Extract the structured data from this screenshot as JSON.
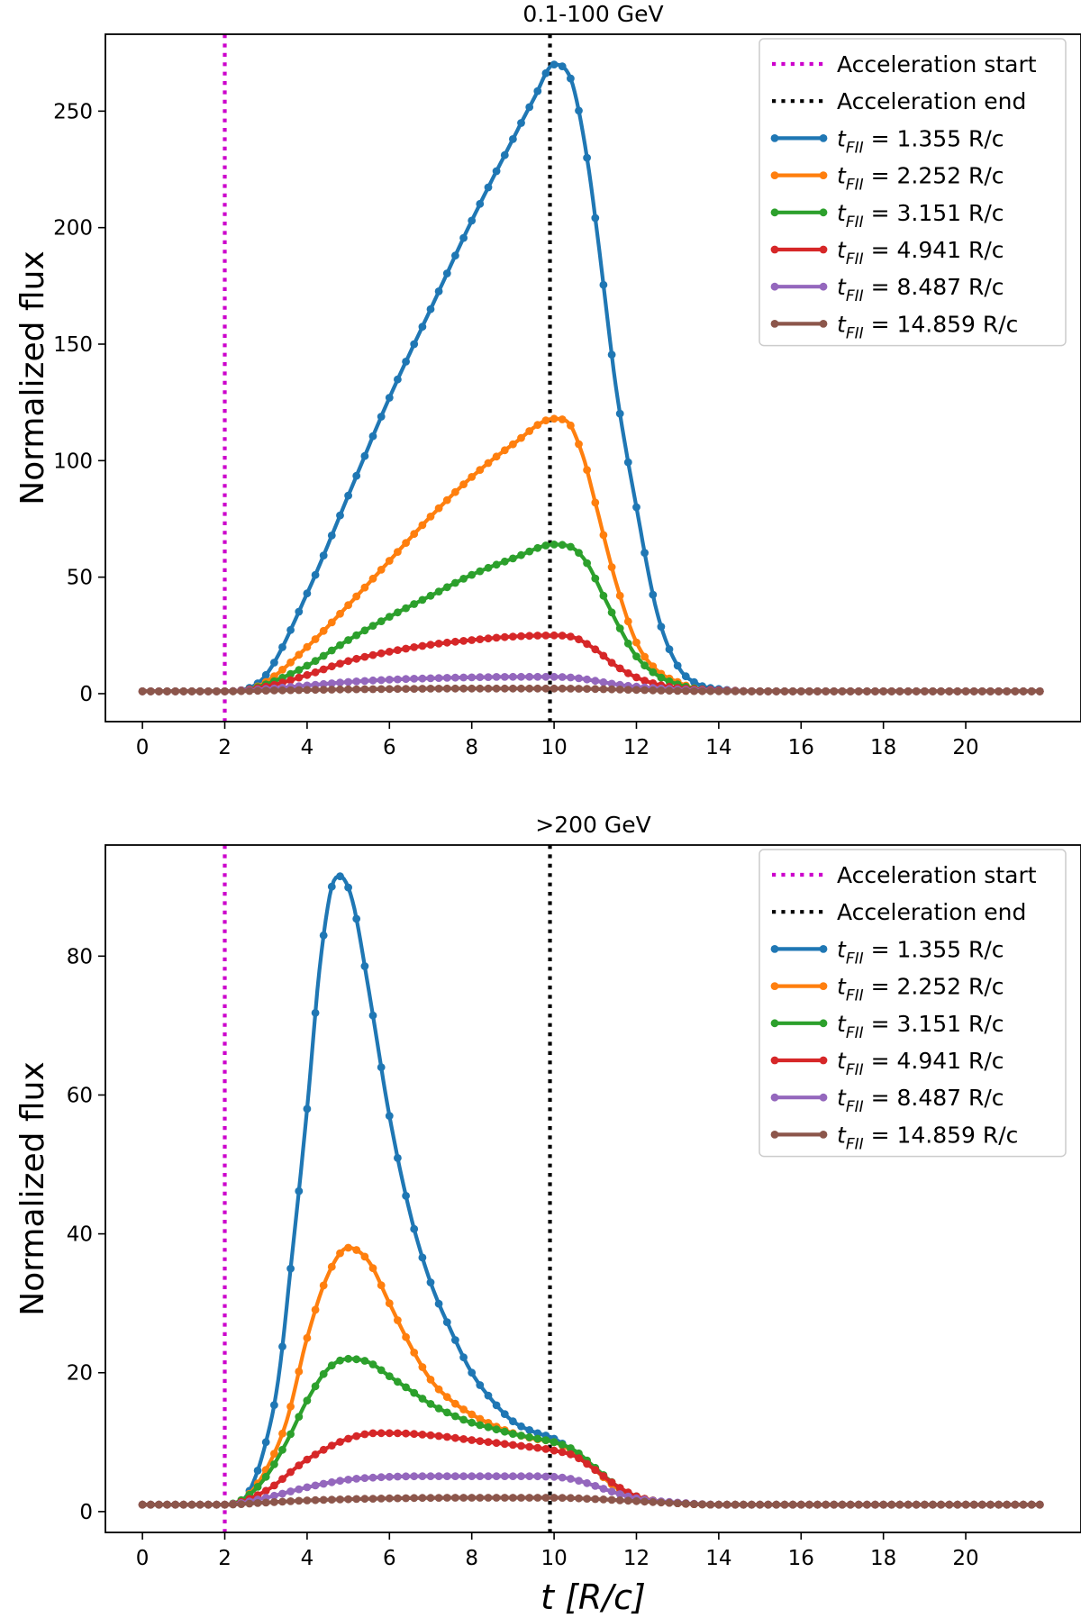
{
  "chart_data": [
    {
      "type": "line",
      "title": "0.1-100 GeV",
      "ylabel": "Normalized flux",
      "xlabel": "",
      "xlim": [
        -0.9,
        22.8
      ],
      "ylim": [
        -12,
        283
      ],
      "xticks": [
        0,
        2,
        4,
        6,
        8,
        10,
        12,
        14,
        16,
        18,
        20
      ],
      "yticks": [
        0,
        50,
        100,
        150,
        200,
        250
      ],
      "legend_position": "top-right",
      "markers": "dots",
      "vlines": [
        {
          "name": "Acceleration start",
          "x": 2.0,
          "color": "#cc00cc",
          "style": "dotted"
        },
        {
          "name": "Acceleration end",
          "x": 9.9,
          "color": "#000000",
          "style": "dotted"
        }
      ],
      "series": [
        {
          "name": "1.355 R/c",
          "color": "#1f77b4",
          "points": [
            [
              0,
              1
            ],
            [
              2,
              1
            ],
            [
              2.4,
              1.5
            ],
            [
              3,
              8
            ],
            [
              4,
              43
            ],
            [
              5,
              85
            ],
            [
              6,
              127
            ],
            [
              7,
              165
            ],
            [
              8,
              203
            ],
            [
              9,
              238
            ],
            [
              9.5,
              255
            ],
            [
              10,
              270
            ],
            [
              10.4,
              264
            ],
            [
              10.8,
              230
            ],
            [
              11.1,
              190
            ],
            [
              11.5,
              132
            ],
            [
              12,
              80
            ],
            [
              12.5,
              35
            ],
            [
              13,
              12
            ],
            [
              13.5,
              4
            ],
            [
              14,
              2
            ],
            [
              15,
              1
            ],
            [
              22,
              1
            ]
          ]
        },
        {
          "name": "2.252 R/c",
          "color": "#ff7f0e",
          "points": [
            [
              0,
              1
            ],
            [
              2,
              1
            ],
            [
              2.5,
              1.5
            ],
            [
              3,
              5
            ],
            [
              4,
              20
            ],
            [
              5,
              38
            ],
            [
              6,
              57
            ],
            [
              7,
              76
            ],
            [
              8,
              93
            ],
            [
              9,
              107
            ],
            [
              10,
              118
            ],
            [
              10.3,
              117
            ],
            [
              10.7,
              102
            ],
            [
              11,
              82
            ],
            [
              11.5,
              48
            ],
            [
              12,
              22
            ],
            [
              12.5,
              10
            ],
            [
              13,
              5
            ],
            [
              13.5,
              2
            ],
            [
              15,
              1
            ],
            [
              22,
              1
            ]
          ]
        },
        {
          "name": "3.151 R/c",
          "color": "#2ca02c",
          "points": [
            [
              0,
              1
            ],
            [
              2,
              1
            ],
            [
              2.5,
              1.5
            ],
            [
              3,
              4
            ],
            [
              4,
              12
            ],
            [
              5,
              23
            ],
            [
              6,
              33
            ],
            [
              7,
              42
            ],
            [
              8,
              51
            ],
            [
              9,
              58
            ],
            [
              10,
              64
            ],
            [
              10.4,
              63
            ],
            [
              10.8,
              56
            ],
            [
              11.2,
              42
            ],
            [
              11.6,
              28
            ],
            [
              12,
              16
            ],
            [
              12.5,
              8
            ],
            [
              13,
              4
            ],
            [
              13.5,
              2
            ],
            [
              15,
              1
            ],
            [
              22,
              1
            ]
          ]
        },
        {
          "name": "4.941 R/c",
          "color": "#d62728",
          "points": [
            [
              0,
              1
            ],
            [
              2,
              1
            ],
            [
              3,
              3
            ],
            [
              4,
              8
            ],
            [
              5,
              14
            ],
            [
              6,
              18
            ],
            [
              7,
              21
            ],
            [
              8,
              23
            ],
            [
              9,
              24.5
            ],
            [
              10,
              25
            ],
            [
              10.5,
              24
            ],
            [
              11,
              19
            ],
            [
              11.5,
              12
            ],
            [
              12,
              7
            ],
            [
              12.5,
              4
            ],
            [
              13,
              2.5
            ],
            [
              14,
              1.5
            ],
            [
              15,
              1
            ],
            [
              22,
              1
            ]
          ]
        },
        {
          "name": "8.487 R/c",
          "color": "#9467bd",
          "points": [
            [
              0,
              1
            ],
            [
              2,
              1
            ],
            [
              3,
              2
            ],
            [
              4,
              3.5
            ],
            [
              5,
              5
            ],
            [
              6,
              6
            ],
            [
              7,
              6.6
            ],
            [
              8,
              7
            ],
            [
              9,
              7.2
            ],
            [
              10,
              7.2
            ],
            [
              10.5,
              6.8
            ],
            [
              11,
              5.5
            ],
            [
              11.5,
              4
            ],
            [
              12,
              3
            ],
            [
              13,
              1.8
            ],
            [
              14,
              1.2
            ],
            [
              15,
              1
            ],
            [
              22,
              1
            ]
          ]
        },
        {
          "name": "14.859 R/c",
          "color": "#8c564b",
          "points": [
            [
              0,
              1
            ],
            [
              2,
              1
            ],
            [
              3,
              1.3
            ],
            [
              4,
              1.6
            ],
            [
              6,
              2
            ],
            [
              8,
              2.2
            ],
            [
              10,
              2.2
            ],
            [
              11,
              2
            ],
            [
              12,
              1.6
            ],
            [
              13,
              1.2
            ],
            [
              15,
              1
            ],
            [
              22,
              1
            ]
          ]
        }
      ]
    },
    {
      "type": "line",
      "title": ">200 GeV",
      "ylabel": "Normalized flux",
      "xlabel": "t [R/c]",
      "xlim": [
        -0.9,
        22.8
      ],
      "ylim": [
        -3,
        96
      ],
      "xticks": [
        0,
        2,
        4,
        6,
        8,
        10,
        12,
        14,
        16,
        18,
        20
      ],
      "yticks": [
        0,
        20,
        40,
        60,
        80
      ],
      "legend_position": "top-right",
      "markers": "dots",
      "vlines": [
        {
          "name": "Acceleration start",
          "x": 2.0,
          "color": "#cc00cc",
          "style": "dotted"
        },
        {
          "name": "Acceleration end",
          "x": 9.9,
          "color": "#000000",
          "style": "dotted"
        }
      ],
      "series": [
        {
          "name": "1.355 R/c",
          "color": "#1f77b4",
          "points": [
            [
              0,
              1
            ],
            [
              2,
              1
            ],
            [
              2.3,
              1.2
            ],
            [
              2.6,
              3
            ],
            [
              3,
              10
            ],
            [
              3.3,
              19
            ],
            [
              3.6,
              35
            ],
            [
              4,
              58
            ],
            [
              4.3,
              78
            ],
            [
              4.6,
              90
            ],
            [
              4.8,
              91.5
            ],
            [
              5.1,
              88
            ],
            [
              5.5,
              75
            ],
            [
              6,
              57
            ],
            [
              6.5,
              43
            ],
            [
              7,
              33
            ],
            [
              7.5,
              26
            ],
            [
              8,
              20
            ],
            [
              8.5,
              16
            ],
            [
              9,
              13
            ],
            [
              9.5,
              11.5
            ],
            [
              10,
              10.5
            ],
            [
              10.5,
              8.5
            ],
            [
              11,
              6
            ],
            [
              11.5,
              3.5
            ],
            [
              12,
              2
            ],
            [
              12.5,
              1.5
            ],
            [
              13,
              1.2
            ],
            [
              14,
              1
            ],
            [
              22,
              1
            ]
          ]
        },
        {
          "name": "2.252 R/c",
          "color": "#ff7f0e",
          "points": [
            [
              0,
              1
            ],
            [
              2,
              1
            ],
            [
              2.5,
              2
            ],
            [
              3,
              6
            ],
            [
              3.5,
              13
            ],
            [
              4,
              25
            ],
            [
              4.5,
              34
            ],
            [
              5,
              38
            ],
            [
              5.5,
              36
            ],
            [
              6,
              30
            ],
            [
              6.5,
              24
            ],
            [
              7,
              19
            ],
            [
              7.5,
              16
            ],
            [
              8,
              14
            ],
            [
              8.5,
              12.5
            ],
            [
              9,
              11.3
            ],
            [
              9.5,
              10.5
            ],
            [
              10,
              10
            ],
            [
              10.5,
              8.5
            ],
            [
              11,
              6
            ],
            [
              11.5,
              3.5
            ],
            [
              12,
              2
            ],
            [
              12.5,
              1.5
            ],
            [
              13,
              1.2
            ],
            [
              14,
              1
            ],
            [
              22,
              1
            ]
          ]
        },
        {
          "name": "3.151 R/c",
          "color": "#2ca02c",
          "points": [
            [
              0,
              1
            ],
            [
              2,
              1
            ],
            [
              2.5,
              2
            ],
            [
              3,
              5
            ],
            [
              3.5,
              10
            ],
            [
              4,
              16
            ],
            [
              4.5,
              20.5
            ],
            [
              5,
              22
            ],
            [
              5.5,
              21.5
            ],
            [
              6,
              19.5
            ],
            [
              6.5,
              17.5
            ],
            [
              7,
              15.5
            ],
            [
              7.5,
              14
            ],
            [
              8,
              12.8
            ],
            [
              8.5,
              12
            ],
            [
              9,
              11.2
            ],
            [
              9.5,
              10.6
            ],
            [
              10,
              10
            ],
            [
              10.5,
              8.8
            ],
            [
              11,
              6.3
            ],
            [
              11.5,
              3.8
            ],
            [
              12,
              2.2
            ],
            [
              12.5,
              1.5
            ],
            [
              13,
              1.2
            ],
            [
              14,
              1
            ],
            [
              22,
              1
            ]
          ]
        },
        {
          "name": "4.941 R/c",
          "color": "#d62728",
          "points": [
            [
              0,
              1
            ],
            [
              2,
              1
            ],
            [
              3,
              3
            ],
            [
              4,
              7.5
            ],
            [
              5,
              10.5
            ],
            [
              5.7,
              11.3
            ],
            [
              6,
              11.3
            ],
            [
              7,
              11
            ],
            [
              8,
              10.3
            ],
            [
              9,
              9.6
            ],
            [
              10,
              8.8
            ],
            [
              10.5,
              8
            ],
            [
              11,
              6
            ],
            [
              11.5,
              3.8
            ],
            [
              12,
              2.2
            ],
            [
              12.5,
              1.5
            ],
            [
              13,
              1.2
            ],
            [
              14,
              1
            ],
            [
              22,
              1
            ]
          ]
        },
        {
          "name": "8.487 R/c",
          "color": "#9467bd",
          "points": [
            [
              0,
              1
            ],
            [
              2,
              1
            ],
            [
              3,
              2
            ],
            [
              4,
              3.5
            ],
            [
              5,
              4.6
            ],
            [
              6,
              5
            ],
            [
              7,
              5.1
            ],
            [
              8,
              5.1
            ],
            [
              9,
              5.1
            ],
            [
              10,
              5
            ],
            [
              10.5,
              4.6
            ],
            [
              11,
              3.7
            ],
            [
              11.5,
              2.7
            ],
            [
              12,
              1.9
            ],
            [
              13,
              1.3
            ],
            [
              14,
              1
            ],
            [
              22,
              1
            ]
          ]
        },
        {
          "name": "14.859 R/c",
          "color": "#8c564b",
          "points": [
            [
              0,
              1
            ],
            [
              2,
              1
            ],
            [
              3,
              1.3
            ],
            [
              4,
              1.6
            ],
            [
              6,
              1.9
            ],
            [
              8,
              2
            ],
            [
              10,
              2
            ],
            [
              11,
              1.8
            ],
            [
              12,
              1.5
            ],
            [
              13,
              1.2
            ],
            [
              14,
              1
            ],
            [
              22,
              1
            ]
          ]
        }
      ]
    }
  ],
  "legend": {
    "accel_start": "Acceleration start",
    "accel_end": "Acceleration end",
    "t_symbol": "t",
    "t_subscript": "FII",
    "equals": " = "
  }
}
